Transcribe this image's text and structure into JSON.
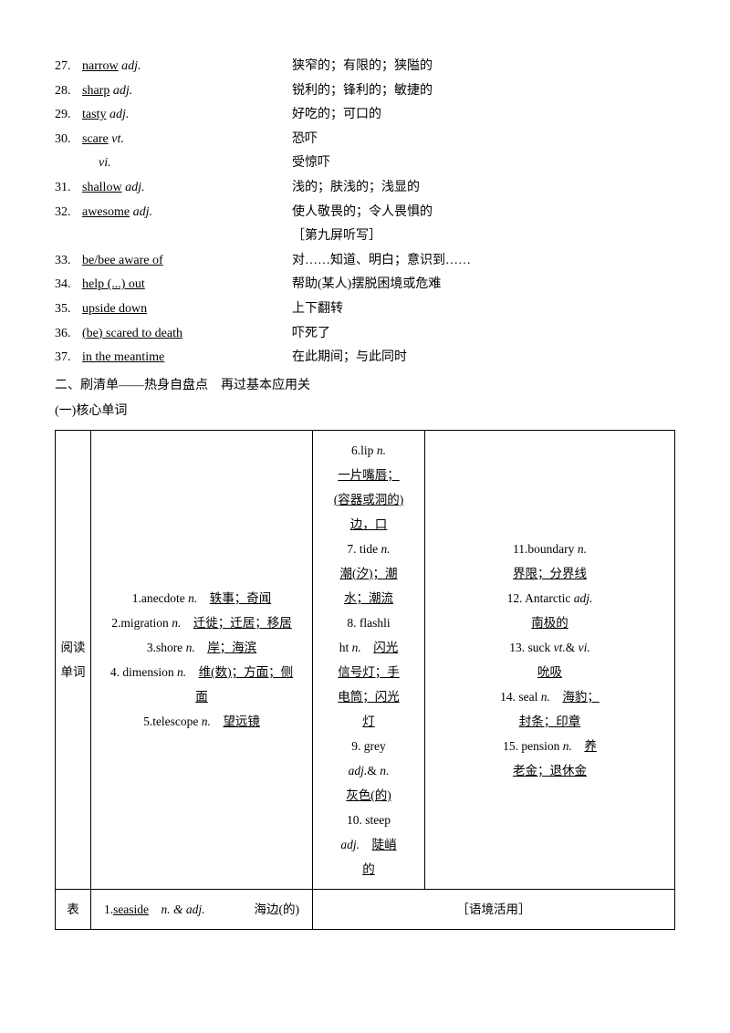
{
  "vocab_list": [
    {
      "num": "27.",
      "word": "narrow",
      "pos": "adj.",
      "def": "狭窄的；有限的；狭隘的"
    },
    {
      "num": "28.",
      "word": "sharp",
      "pos": "adj.",
      "def": "锐利的；锋利的；敏捷的"
    },
    {
      "num": "29.",
      "word": "tasty",
      "pos": "adj.",
      "def": "好吃的；可口的"
    },
    {
      "num": "30.",
      "word": "scare",
      "pos": "vt.",
      "def": "恐吓"
    },
    {
      "num": "",
      "word": "",
      "pos": "vi.",
      "def": "受惊吓",
      "indent": true
    },
    {
      "num": "31.",
      "word": "shallow",
      "pos": "adj.",
      "def": "浅的；肤浅的；浅显的"
    },
    {
      "num": "32.",
      "word": "awesome",
      "pos": "adj.",
      "def": "使人敬畏的；令人畏惧的"
    }
  ],
  "screen_note": "［第九屏听写］",
  "phrase_list": [
    {
      "num": "33.",
      "phrase": "be/bee aware of",
      "def": "对……知道、明白；意识到……"
    },
    {
      "num": "34.",
      "phrase": "help (...) out",
      "def": "帮助(某人)摆脱困境或危难"
    },
    {
      "num": "35.",
      "phrase": "upside down",
      "def": "上下翻转"
    },
    {
      "num": "36.",
      "phrase": "(be) scared to death",
      "def": "吓死了"
    },
    {
      "num": "37.",
      "phrase": "in the meantime",
      "def": "在此期间；与此同时"
    }
  ],
  "section2_title": "二、刷清单——热身自盘点　再过基本应用关",
  "section2_sub": "(一)核心单词",
  "table": {
    "row1": {
      "label": "阅读单词",
      "col1": [
        {
          "n": "1.",
          "w": "anecdote",
          "p": "n.",
          "d": "轶事；奇闻"
        },
        {
          "n": "2.",
          "w": "migration",
          "p": "n.",
          "d": "迁徙；迁居；移居"
        },
        {
          "n": "3.",
          "w": "shore",
          "p": "n.",
          "d": "岸；海滨"
        },
        {
          "n": "4.",
          "w": "dimension",
          "p": "n.",
          "d": "维(数)；方面；侧面"
        },
        {
          "n": "5.",
          "w": "telescope",
          "p": "n.",
          "d": "望远镜"
        }
      ],
      "col2": [
        {
          "n": "6.",
          "w": "lip",
          "p": "n.",
          "d": "一片嘴唇；(容器或洞的)边，口"
        },
        {
          "n": "7.",
          "w": "tide",
          "p": "n.",
          "d": "潮(汐)；潮水；潮流"
        },
        {
          "n": "8.",
          "w": "flashlight",
          "p": "n.",
          "d": "闪光信号灯；手电筒；闪光灯"
        },
        {
          "n": "9.",
          "w": "grey",
          "p": "adj.& n.",
          "d": "灰色(的)"
        },
        {
          "n": "10.",
          "w": "steep",
          "p": "adj.",
          "d": "陡峭的"
        }
      ],
      "col3": [
        {
          "n": "11.",
          "w": "boundary",
          "p": "n.",
          "d": "界限；分界线"
        },
        {
          "n": "12.",
          "w": "Antarctic",
          "p": "adj.",
          "d": "南极的"
        },
        {
          "n": "13.",
          "w": "suck",
          "p": "vt.& vi.",
          "d": "吮吸"
        },
        {
          "n": "14.",
          "w": "seal",
          "p": "n.",
          "d": "海豹；封条；印章"
        },
        {
          "n": "15.",
          "w": "pension",
          "p": "n.",
          "d": "养老金；退休金"
        }
      ]
    },
    "row2": {
      "label": "表",
      "col1": {
        "n": "1.",
        "w": "seaside",
        "p": "n. & adj.",
        "d": "海边(的)"
      },
      "col2": "［语境活用］"
    }
  }
}
